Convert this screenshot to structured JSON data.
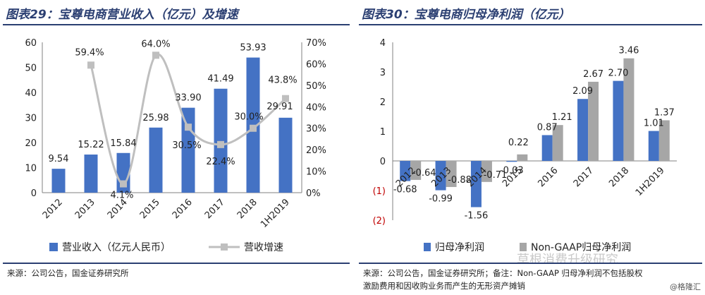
{
  "left": {
    "title": "图表29：宝尊电商营业收入（亿元）及增速",
    "source": "来源：公司公告，国金证券研究所",
    "legend": {
      "bar_label": "营业收入（亿元人民币）",
      "line_label": "营收增速"
    }
  },
  "right": {
    "title": "图表30：宝尊电商归母净利润（亿元）",
    "source_lines": [
      "来源：公司公告，国金证券研究所；备注：Non-GAAP 归母净利润不包括股权",
      "激励费用和因收购业务而产生的无形资产摊销"
    ],
    "legend": {
      "series1_label": "归母净利润",
      "series2_label": "Non-GAAP归母净利润"
    },
    "watermark": "草根消费升级研究",
    "credit": "@格隆汇"
  },
  "colors": {
    "bar_blue": "#4472c4",
    "bar_gray": "#a6a6a6",
    "line_gray": "#bfbfbf",
    "title_navy": "#2b3f72",
    "neg_tick_red": "#c00000"
  },
  "chart_data": [
    {
      "type": "bar",
      "title": "图表29：宝尊电商营业收入（亿元）及增速",
      "categories": [
        "2012",
        "2013",
        "2014",
        "2015",
        "2016",
        "2017",
        "2018",
        "1H2019"
      ],
      "series": [
        {
          "name": "营业收入（亿元人民币）",
          "type": "bar",
          "axis": "left",
          "values": [
            9.54,
            15.22,
            15.84,
            25.98,
            33.9,
            41.49,
            53.93,
            29.91
          ],
          "labels": [
            "9.54",
            "15.22",
            "15.84",
            "25.98",
            "33.90",
            "41.49",
            "53.93",
            "29.91"
          ]
        },
        {
          "name": "营收增速",
          "type": "line",
          "axis": "right",
          "values": [
            null,
            59.4,
            4.1,
            64.0,
            30.5,
            22.4,
            30.0,
            43.8
          ],
          "labels": [
            "",
            "59.4%",
            "4.1%",
            "64.0%",
            "30.5%",
            "22.4%",
            "30.0%",
            "43.8%"
          ]
        }
      ],
      "ylim_left": [
        0,
        60
      ],
      "yticks_left": [
        0,
        10,
        20,
        30,
        40,
        50,
        60
      ],
      "ylim_right": [
        0,
        70
      ],
      "yticks_right": [
        "0%",
        "10%",
        "20%",
        "30%",
        "40%",
        "50%",
        "60%",
        "70%"
      ],
      "legend_position": "bottom"
    },
    {
      "type": "bar",
      "title": "图表30：宝尊电商归母净利润（亿元）",
      "categories": [
        "2012",
        "2013",
        "2014",
        "2015",
        "2016",
        "2017",
        "2018",
        "1H2019"
      ],
      "series": [
        {
          "name": "归母净利润",
          "values": [
            -0.68,
            -0.99,
            -1.56,
            -0.03,
            0.87,
            2.09,
            2.7,
            1.01
          ],
          "labels": [
            "-0.68",
            "-0.99",
            "-1.56",
            "-0.03",
            "0.87",
            "2.09",
            "2.70",
            "1.01"
          ]
        },
        {
          "name": "Non-GAAP归母净利润",
          "values": [
            -0.64,
            -0.88,
            -0.71,
            0.22,
            1.21,
            2.67,
            3.46,
            1.37
          ],
          "labels": [
            "-0.64",
            "-0.88",
            "-0.71",
            "0.22",
            "1.21",
            "2.67",
            "3.46",
            "1.37"
          ]
        }
      ],
      "ylim": [
        -2,
        4
      ],
      "yticks": [
        "(2)",
        "(1)",
        "0",
        "1",
        "2",
        "3",
        "4"
      ],
      "legend_position": "bottom"
    }
  ]
}
